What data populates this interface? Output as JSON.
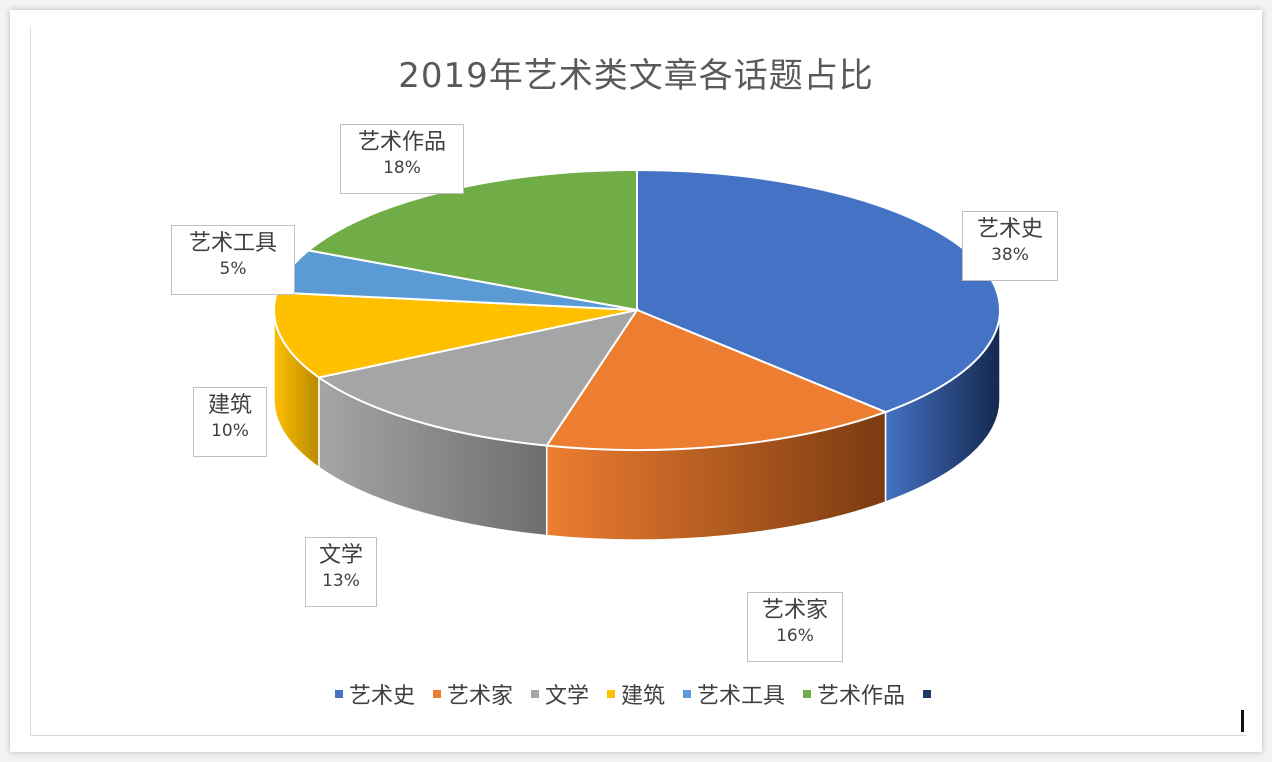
{
  "chart_data": {
    "type": "pie",
    "title": "2019年艺术类文章各话题占比",
    "slices": [
      {
        "name": "艺术史",
        "value": 38,
        "label": "38%",
        "color": "#4472C4",
        "side": "#15284f"
      },
      {
        "name": "艺术家",
        "value": 16,
        "label": "16%",
        "color": "#ED7D31",
        "side": "#7a3a10"
      },
      {
        "name": "文学",
        "value": 13,
        "label": "13%",
        "color": "#A5A5A5",
        "side": "#6e6e6e"
      },
      {
        "name": "建筑",
        "value": 10,
        "label": "10%",
        "color": "#FFC000",
        "side": "#b88a00"
      },
      {
        "name": "艺术工具",
        "value": 5,
        "label": "5%",
        "color": "#5B9BD5",
        "side": "#2f5f8f"
      },
      {
        "name": "艺术作品",
        "value": 18,
        "label": "18%",
        "color": "#70AD47",
        "side": "#3f6b26"
      }
    ],
    "legend": [
      {
        "name": "艺术史",
        "color": "#4472C4"
      },
      {
        "name": "艺术家",
        "color": "#ED7D31"
      },
      {
        "name": "文学",
        "color": "#A5A5A5"
      },
      {
        "name": "建筑",
        "color": "#FFC000"
      },
      {
        "name": "艺术工具",
        "color": "#5B9BD5"
      },
      {
        "name": "艺术作品",
        "color": "#70AD47"
      },
      {
        "name": "",
        "color": "#1F3864"
      }
    ],
    "legend_position": "bottom"
  }
}
